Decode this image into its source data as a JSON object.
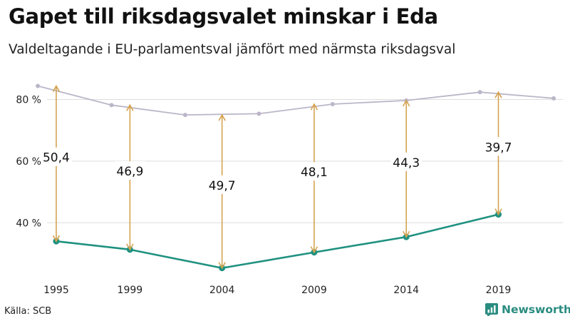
{
  "header": {
    "title": "Gapet till riksdagsvalet minskar i Eda",
    "subtitle": "Valdeltagande i EU-parlamentsval jämfört med närmsta riksdagsval"
  },
  "footer": {
    "source": "Källa: SCB",
    "brand": "Newsworthy"
  },
  "colors": {
    "eu": "#1f9180",
    "riksdag": "#bbb6c8",
    "arrow": "#d4a351",
    "grid": "#dddddd"
  },
  "chart_data": {
    "type": "line",
    "title": "Gapet till riksdagsvalet minskar i Eda",
    "subtitle": "Valdeltagande i EU-parlamentsval jämfört med närmsta riksdagsval",
    "xlim": [
      1994.5,
      2022.5
    ],
    "ylim": [
      22,
      88
    ],
    "x_ticks": [
      1995,
      1999,
      2004,
      2009,
      2014,
      2019
    ],
    "y_ticks": [
      {
        "value": 40,
        "label": "40 %"
      },
      {
        "value": 60,
        "label": "60 %"
      },
      {
        "value": 80,
        "label": "80 %"
      }
    ],
    "grid": true,
    "legend": "none",
    "series": [
      {
        "key": "riksdag",
        "x": [
          1994,
          1998,
          2002,
          2006,
          2010,
          2014,
          2018,
          2022
        ],
        "y": [
          84.4,
          78.2,
          75.0,
          75.4,
          78.5,
          79.7,
          82.4,
          80.4
        ]
      },
      {
        "key": "eu",
        "x": [
          1995,
          1999,
          2004,
          2009,
          2014,
          2019
        ],
        "y": [
          34.0,
          31.3,
          25.3,
          30.4,
          35.4,
          42.7
        ]
      }
    ],
    "gaps": [
      {
        "x": 1995,
        "from": 34.0,
        "to": 84.4,
        "label": "50,4"
      },
      {
        "x": 1999,
        "from": 31.3,
        "to": 78.2,
        "label": "46,9"
      },
      {
        "x": 2004,
        "from": 25.3,
        "to": 75.0,
        "label": "49,7"
      },
      {
        "x": 2009,
        "from": 30.4,
        "to": 78.5,
        "label": "48,1"
      },
      {
        "x": 2014,
        "from": 35.4,
        "to": 79.7,
        "label": "44,3"
      },
      {
        "x": 2019,
        "from": 42.7,
        "to": 82.4,
        "label": "39,7"
      }
    ]
  }
}
